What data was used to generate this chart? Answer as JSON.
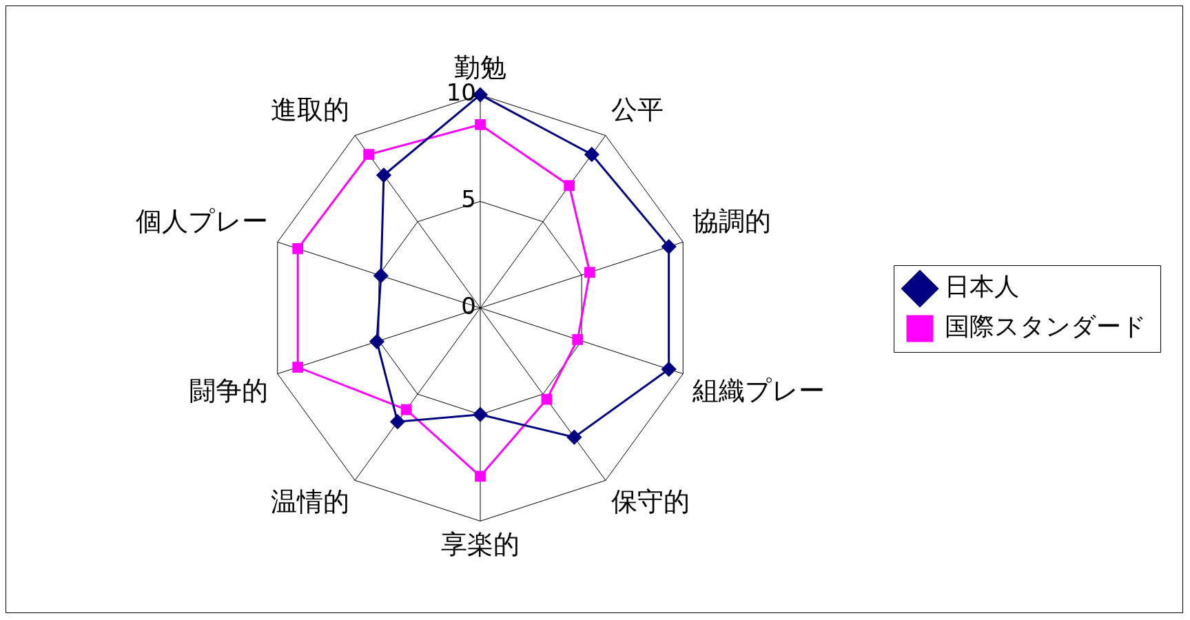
{
  "chart_data": {
    "type": "radar",
    "categories": [
      "勤勉",
      "公平",
      "協調的",
      "組織プレー",
      "保守的",
      "享楽的",
      "温情的",
      "闘争的",
      "個人プレー",
      "進取的"
    ],
    "series": [
      {
        "name": "日本人",
        "color": "#000080",
        "marker": "diamond",
        "values": [
          10,
          8.9,
          9.3,
          9.3,
          7.5,
          5.0,
          6.6,
          5.1,
          4.9,
          7.7
        ]
      },
      {
        "name": "国際スタンダード",
        "color": "#ff00ff",
        "marker": "square",
        "values": [
          8.6,
          7.1,
          5.4,
          4.8,
          5.3,
          7.9,
          5.9,
          9.0,
          9.0,
          8.9
        ]
      }
    ],
    "ylim": [
      0,
      10
    ],
    "yticks": [
      0,
      5,
      10
    ],
    "grid": true,
    "legend": "right"
  }
}
